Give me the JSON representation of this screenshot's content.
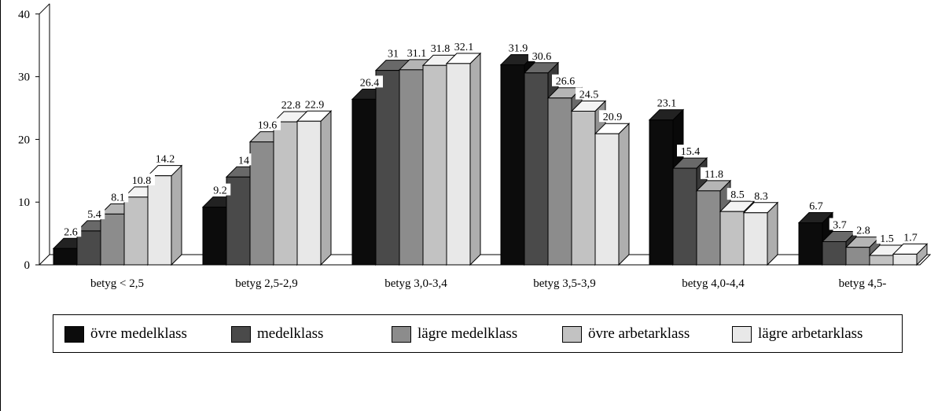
{
  "chart_data": {
    "type": "bar",
    "style": "3d-clustered",
    "title": "",
    "xlabel": "",
    "ylabel": "",
    "ylim": [
      0,
      40
    ],
    "yticks": [
      0,
      10,
      20,
      30,
      40
    ],
    "grid": false,
    "legend_position": "bottom",
    "categories": [
      "betyg < 2,5",
      "betyg 2,5-2,9",
      "betyg 3,0-3,4",
      "betyg 3,5-3,9",
      "betyg 4,0-4,4",
      "betyg 4,5-"
    ],
    "series": [
      {
        "name": "övre medelklass",
        "color": "#0c0c0c",
        "values": [
          2.6,
          9.2,
          26.4,
          31.9,
          23.1,
          6.7
        ]
      },
      {
        "name": "medelklass",
        "color": "#4a4a4a",
        "values": [
          5.4,
          14,
          31,
          30.6,
          15.4,
          3.7
        ]
      },
      {
        "name": "lägre medelklass",
        "color": "#8c8c8c",
        "values": [
          8.1,
          19.6,
          31.1,
          26.6,
          11.8,
          2.8
        ]
      },
      {
        "name": "övre arbetarklass",
        "color": "#c2c2c2",
        "values": [
          10.8,
          22.8,
          31.8,
          24.5,
          8.5,
          1.5
        ]
      },
      {
        "name": "lägre arbetarklass",
        "color": "#e8e8e8",
        "values": [
          14.2,
          22.9,
          32.1,
          20.9,
          8.3,
          1.7
        ]
      }
    ]
  }
}
